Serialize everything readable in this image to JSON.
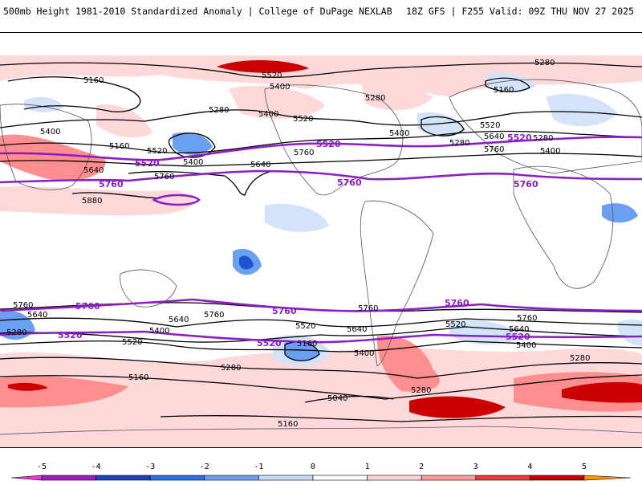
{
  "header": {
    "title": "500mb Height 1981-2010 Standardized Anomaly | College of DuPage NEXLAB",
    "run_info": "18Z GFS | F255 Valid: 09Z THU NOV 27 2025"
  },
  "contour_labels": {
    "black": [
      "5160",
      "5280",
      "5400",
      "5520",
      "5640",
      "5760",
      "5880",
      "5040"
    ],
    "purple": [
      "5520",
      "5760"
    ]
  },
  "legend": {
    "ticks": [
      "-5",
      "-4",
      "-3",
      "-2",
      "-1",
      "0",
      "1",
      "2",
      "3",
      "4",
      "5"
    ],
    "colors": [
      "#e83ad8",
      "#9b1fc0",
      "#1d3fb8",
      "#2c6fe0",
      "#6f9df0",
      "#c8dcf8",
      "#ffffff",
      "#ffd4d4",
      "#ff9a9a",
      "#e83c3c",
      "#c80000",
      "#ff9900",
      "#ffd000"
    ]
  },
  "colors": {
    "neg_light": "#d3e4fa",
    "neg_mid": "#6b9ff2",
    "neg_dark": "#1f52d0",
    "pos_light": "#ffd9d9",
    "pos_mid": "#ff8f8f",
    "pos_dark": "#cc0000",
    "purple": "#8a1fc4"
  }
}
